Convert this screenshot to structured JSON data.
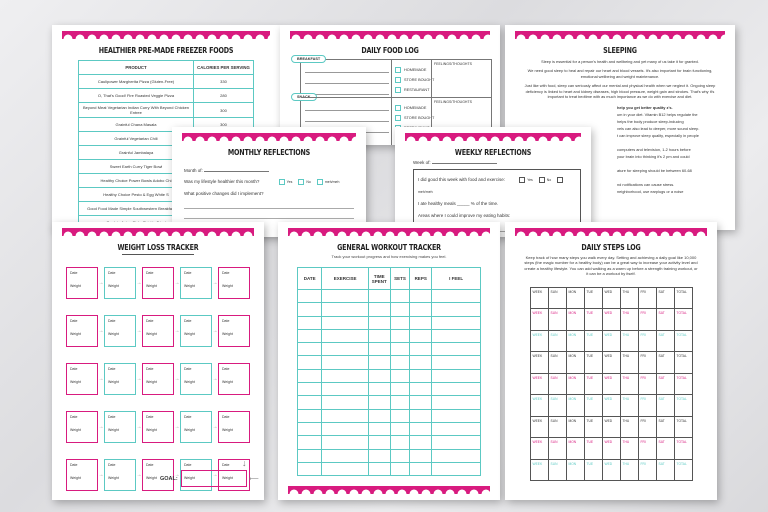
{
  "colors": {
    "pink": "#d81b7f",
    "teal": "#5cc9c3"
  },
  "freezer": {
    "title": "HEALTHIER PRE-MADE FREEZER FOODS",
    "headers": [
      "PRODUCT",
      "CALORIES PER SERVING"
    ],
    "rows": [
      [
        "Caulipower Margherita Pizza (Gluten-Free)",
        "330"
      ],
      [
        "O, That's Good! Fire Roasted Veggie Pizza",
        "280"
      ],
      [
        "Beyond Meat Vegetarian Indian Curry With Beyond Chicken Entree",
        "300"
      ],
      [
        "Grainful Chana Masala",
        "300"
      ],
      [
        "Grainful Vegetarian Chili",
        ""
      ],
      [
        "Grainful Jambalaya",
        ""
      ],
      [
        "Sweet Earth Curry Tiger Bowl",
        ""
      ],
      [
        "Healthy Choice Power Bowls Adobo Chi",
        ""
      ],
      [
        "Healthy Choice Pesto & Egg White S",
        ""
      ],
      [
        "Good Food Made Simple Southwestern Breakfast Bowl",
        ""
      ],
      [
        "Gardein Asian Style Chick'n Fried",
        ""
      ]
    ]
  },
  "foodlog": {
    "title": "DAILY FOOD LOG",
    "meals": [
      "BREAKFAST",
      "SNACK"
    ],
    "options": [
      "HOMEMADE",
      "STORE BOUGHT",
      "RESTAURANT"
    ],
    "feelings": "FEELINGS/THOUGHTS"
  },
  "sleeping": {
    "title": "SLEEPING",
    "paragraphs": [
      "Sleep is essential for a person's health and wellbeing and yet many of us take it for granted.",
      "We need good sleep to heal and repair our heart and blood vessels. It's also important for brain functioning, emotional wellbeing and weight maintenance.",
      "Just like with food, sleep can seriously affect our mental and physical health when we neglect it. Ongoing sleep deficiency is linked to heart and kidney diseases, high blood pressure, weight gain and strokes. That's why it's important to treat bedtime with as much importance as we do with exercise and diet."
    ],
    "fragments": [
      "help you get better quality z's.",
      "um in your diet. Vitamin B12 helps regulate the",
      "helps the body produce sleep-inducing",
      "vels can also lead to deeper, more sound sleep.",
      "t can improve sleep quality, especially in people",
      "",
      "computers and television, 1-2 hours before",
      "your brain into thinking it's 2 pm and could",
      "",
      "ature for sleeping should be between 60-68",
      "",
      "nd notifications can cause stress.",
      "neighborhood, use earplugs or a noise"
    ]
  },
  "monthly": {
    "title": "MONTHLY REFLECTIONS",
    "month_of": "Month of:",
    "q1": "Was my lifestyle healthier this month?",
    "choices": [
      "Yes",
      "No",
      "meh/meh"
    ],
    "q2": "What positive changes did I implement?"
  },
  "weekly": {
    "title": "WEEKLY REFLECTIONS",
    "week_of": "Week of:",
    "q1": "I did good this week with food and exercise:",
    "choices": [
      "Yes",
      "No",
      "meh/meh"
    ],
    "q2": "I ate healthy meals _____ % of the time.",
    "q3": "Areas where I could improve my eating habits:"
  },
  "weight": {
    "title": "WEIGHT LOSS TRACKER",
    "date": "Date",
    "weight": "Weight",
    "goal": "GOAL:"
  },
  "workout": {
    "title": "GENERAL WORKOUT TRACKER",
    "subtitle": "Track your workout progress and how exercising makes you feel.",
    "headers": [
      "DATE",
      "EXERCISE",
      "TIME SPENT",
      "SETS",
      "REPS",
      "I FEEL"
    ]
  },
  "steps": {
    "title": "DAILY STEPS LOG",
    "description": "Keep track of how many steps you walk every day. Setting and achieving a daily goal like 10,000 steps (the magic number for a healthy body) can be a great way to increase your activity level and create a healthy lifestyle. You can add walking as a warm up before a strength training workout, or it can be a workout by itself.",
    "headers": [
      "WEEK",
      "SUN",
      "MON",
      "TUE",
      "WED",
      "THU",
      "FRI",
      "SAT",
      "TOTAL"
    ]
  }
}
